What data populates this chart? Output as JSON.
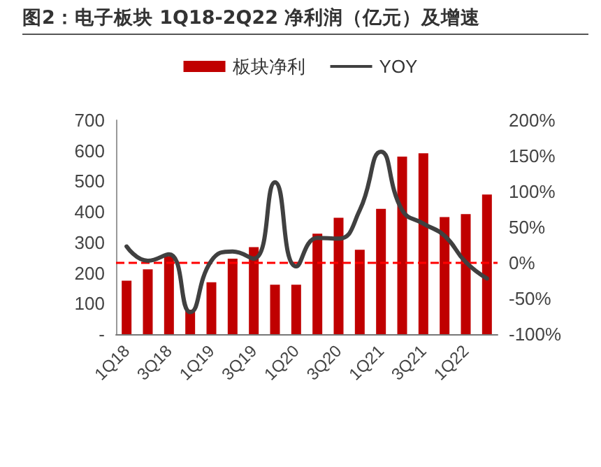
{
  "chart_data": {
    "type": "bar",
    "title": "图2：电子板块 1Q18-2Q22 净利润（亿元）及增速",
    "categories": [
      "1Q18",
      null,
      "3Q18",
      null,
      "1Q19",
      null,
      "3Q19",
      null,
      "1Q20",
      null,
      "3Q20",
      null,
      "1Q21",
      null,
      "3Q21",
      null,
      "1Q22",
      null
    ],
    "series": [
      {
        "name": "板块净利",
        "color": "#c00000",
        "values": [
          175,
          212,
          255,
          80,
          170,
          247,
          285,
          162,
          162,
          329,
          381,
          276,
          410,
          581,
          592,
          383,
          393,
          457
        ]
      },
      {
        "name": "YOY",
        "type": "line",
        "axis": "y2",
        "color": "#404040",
        "values": [
          23,
          3,
          12,
          -69,
          3,
          16,
          6,
          113,
          -5,
          35,
          34,
          74,
          156,
          74,
          55,
          38,
          1,
          -22
        ]
      }
    ],
    "ylim": [
      0,
      700
    ],
    "yticks": [
      {
        "value": 0,
        "label": "-"
      },
      100,
      200,
      300,
      400,
      500,
      600,
      700
    ],
    "y2lim": [
      -100,
      200
    ],
    "y2ticks": [
      {
        "value": -100,
        "label": "-100%"
      },
      {
        "value": -50,
        "label": "-50%"
      },
      {
        "value": 0,
        "label": "0%"
      },
      {
        "value": 50,
        "label": "50%"
      },
      {
        "value": 100,
        "label": "100%"
      },
      {
        "value": 150,
        "label": "150%"
      },
      {
        "value": 200,
        "label": "200%"
      }
    ],
    "ref_lines": [
      {
        "axis": "y2",
        "value": 0,
        "color": "#ff0000",
        "line_style": "dashed"
      }
    ],
    "grid": false,
    "legend": "top",
    "marker": "none",
    "line_style": "solid"
  }
}
